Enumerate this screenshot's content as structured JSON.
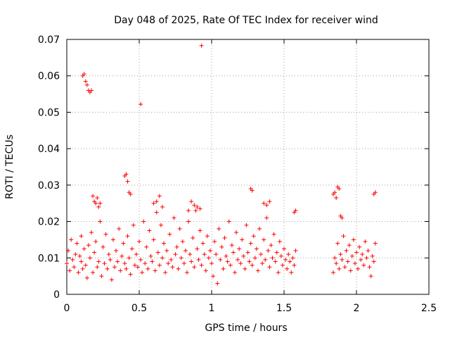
{
  "chart_data": {
    "type": "scatter",
    "title": "Day 048 of 2025, Rate Of TEC Index for receiver wind",
    "xlabel": "GPS time / hours",
    "ylabel": "ROTI / TECUs",
    "xlim": [
      0,
      2.5
    ],
    "ylim": [
      0,
      0.07
    ],
    "xticks": [
      "0",
      "0.5",
      "1",
      "1.5",
      "2",
      "2.5"
    ],
    "yticks": [
      "0",
      "0.01",
      "0.02",
      "0.03",
      "0.04",
      "0.05",
      "0.06",
      "0.07"
    ],
    "grid": true,
    "marker": "+",
    "color": "#ff0000",
    "series": [
      {
        "name": "ROTI",
        "description": "dense cloud 0-1.58 h and 1.83-2.13 h; representative sampling of visible points",
        "x": [
          0.0,
          0.01,
          0.02,
          0.03,
          0.04,
          0.05,
          0.06,
          0.07,
          0.08,
          0.09,
          0.1,
          0.1,
          0.11,
          0.12,
          0.13,
          0.14,
          0.15,
          0.16,
          0.17,
          0.18,
          0.19,
          0.2,
          0.21,
          0.22,
          0.23,
          0.24,
          0.25,
          0.26,
          0.27,
          0.28,
          0.29,
          0.3,
          0.31,
          0.32,
          0.33,
          0.34,
          0.35,
          0.36,
          0.37,
          0.38,
          0.39,
          0.4,
          0.41,
          0.42,
          0.43,
          0.44,
          0.45,
          0.46,
          0.47,
          0.48,
          0.49,
          0.5,
          0.51,
          0.52,
          0.53,
          0.54,
          0.55,
          0.56,
          0.57,
          0.58,
          0.59,
          0.6,
          0.61,
          0.62,
          0.63,
          0.64,
          0.65,
          0.66,
          0.67,
          0.68,
          0.69,
          0.7,
          0.71,
          0.72,
          0.73,
          0.74,
          0.75,
          0.76,
          0.77,
          0.78,
          0.79,
          0.8,
          0.81,
          0.82,
          0.83,
          0.84,
          0.85,
          0.86,
          0.87,
          0.88,
          0.89,
          0.9,
          0.91,
          0.92,
          0.93,
          0.94,
          0.95,
          0.96,
          0.97,
          0.98,
          0.99,
          1.0,
          1.01,
          1.02,
          1.03,
          1.04,
          1.05,
          1.06,
          1.07,
          1.08,
          1.09,
          1.1,
          1.11,
          1.12,
          1.13,
          1.14,
          1.15,
          1.16,
          1.17,
          1.18,
          1.19,
          1.2,
          1.21,
          1.22,
          1.23,
          1.24,
          1.25,
          1.26,
          1.27,
          1.28,
          1.29,
          1.3,
          1.31,
          1.32,
          1.33,
          1.34,
          1.35,
          1.36,
          1.37,
          1.38,
          1.39,
          1.4,
          1.41,
          1.42,
          1.43,
          1.44,
          1.45,
          1.46,
          1.47,
          1.48,
          1.49,
          1.5,
          1.51,
          1.52,
          1.53,
          1.54,
          1.55,
          1.56,
          1.57,
          1.58,
          1.84,
          1.85,
          1.86,
          1.87,
          1.88,
          1.89,
          1.9,
          1.91,
          1.92,
          1.93,
          1.94,
          1.95,
          1.96,
          1.97,
          1.98,
          1.99,
          2.0,
          2.01,
          2.02,
          2.03,
          2.04,
          2.05,
          2.06,
          2.07,
          2.08,
          2.09,
          2.1,
          2.11,
          2.12,
          2.13,
          0.11,
          0.12,
          0.13,
          0.14,
          0.15,
          0.16,
          0.17,
          0.51,
          0.93,
          0.4,
          0.41,
          0.42,
          0.43,
          0.44,
          0.18,
          0.19,
          0.2,
          0.21,
          0.22,
          0.23,
          1.27,
          1.28,
          1.57,
          1.58,
          1.84,
          1.85,
          1.86,
          1.87,
          1.88,
          1.89,
          1.9,
          2.12,
          2.13,
          0.6,
          0.62,
          0.64,
          0.66,
          0.84,
          0.86,
          0.88,
          0.9,
          0.92,
          1.36,
          1.38,
          1.4
        ],
        "y": [
          0.0085,
          0.012,
          0.0065,
          0.015,
          0.0095,
          0.0075,
          0.011,
          0.014,
          0.006,
          0.0105,
          0.009,
          0.016,
          0.007,
          0.0125,
          0.008,
          0.0045,
          0.0135,
          0.01,
          0.017,
          0.006,
          0.0115,
          0.0145,
          0.0075,
          0.009,
          0.02,
          0.005,
          0.013,
          0.0085,
          0.0165,
          0.007,
          0.011,
          0.0095,
          0.004,
          0.015,
          0.0075,
          0.012,
          0.009,
          0.018,
          0.0065,
          0.0105,
          0.014,
          0.0085,
          0.007,
          0.016,
          0.01,
          0.0055,
          0.0125,
          0.019,
          0.008,
          0.011,
          0.0075,
          0.0145,
          0.0095,
          0.006,
          0.02,
          0.0085,
          0.013,
          0.007,
          0.0175,
          0.0105,
          0.009,
          0.015,
          0.0065,
          0.0225,
          0.0115,
          0.008,
          0.019,
          0.01,
          0.014,
          0.006,
          0.012,
          0.0085,
          0.0165,
          0.0095,
          0.0075,
          0.021,
          0.011,
          0.013,
          0.007,
          0.018,
          0.01,
          0.0145,
          0.0085,
          0.012,
          0.006,
          0.02,
          0.011,
          0.009,
          0.0155,
          0.0075,
          0.023,
          0.0125,
          0.0095,
          0.0175,
          0.008,
          0.014,
          0.011,
          0.0065,
          0.016,
          0.01,
          0.012,
          0.0085,
          0.005,
          0.0145,
          0.011,
          0.003,
          0.018,
          0.0095,
          0.013,
          0.007,
          0.0155,
          0.0105,
          0.009,
          0.02,
          0.008,
          0.0135,
          0.0115,
          0.006,
          0.017,
          0.0095,
          0.0125,
          0.0085,
          0.015,
          0.0105,
          0.007,
          0.019,
          0.0115,
          0.009,
          0.014,
          0.008,
          0.016,
          0.01,
          0.0125,
          0.0065,
          0.018,
          0.011,
          0.0085,
          0.015,
          0.0095,
          0.021,
          0.012,
          0.0075,
          0.0135,
          0.01,
          0.0165,
          0.009,
          0.0115,
          0.006,
          0.0145,
          0.0105,
          0.008,
          0.0125,
          0.0095,
          0.007,
          0.011,
          0.009,
          0.006,
          0.01,
          0.008,
          0.012,
          0.006,
          0.01,
          0.0085,
          0.014,
          0.007,
          0.011,
          0.0095,
          0.016,
          0.0075,
          0.012,
          0.009,
          0.0135,
          0.0065,
          0.0105,
          0.015,
          0.0085,
          0.0115,
          0.007,
          0.013,
          0.0095,
          0.011,
          0.008,
          0.0145,
          0.01,
          0.012,
          0.0075,
          0.005,
          0.0105,
          0.009,
          0.014,
          0.06,
          0.0605,
          0.0585,
          0.0575,
          0.056,
          0.0555,
          0.056,
          0.0522,
          0.0683,
          0.0325,
          0.033,
          0.031,
          0.028,
          0.0275,
          0.027,
          0.0255,
          0.025,
          0.0265,
          0.024,
          0.025,
          0.029,
          0.0285,
          0.0225,
          0.023,
          0.0275,
          0.028,
          0.0265,
          0.0295,
          0.029,
          0.0215,
          0.021,
          0.0275,
          0.028,
          0.025,
          0.0255,
          0.027,
          0.024,
          0.023,
          0.0255,
          0.0245,
          0.024,
          0.0235,
          0.025,
          0.0245,
          0.0255
        ]
      }
    ]
  }
}
